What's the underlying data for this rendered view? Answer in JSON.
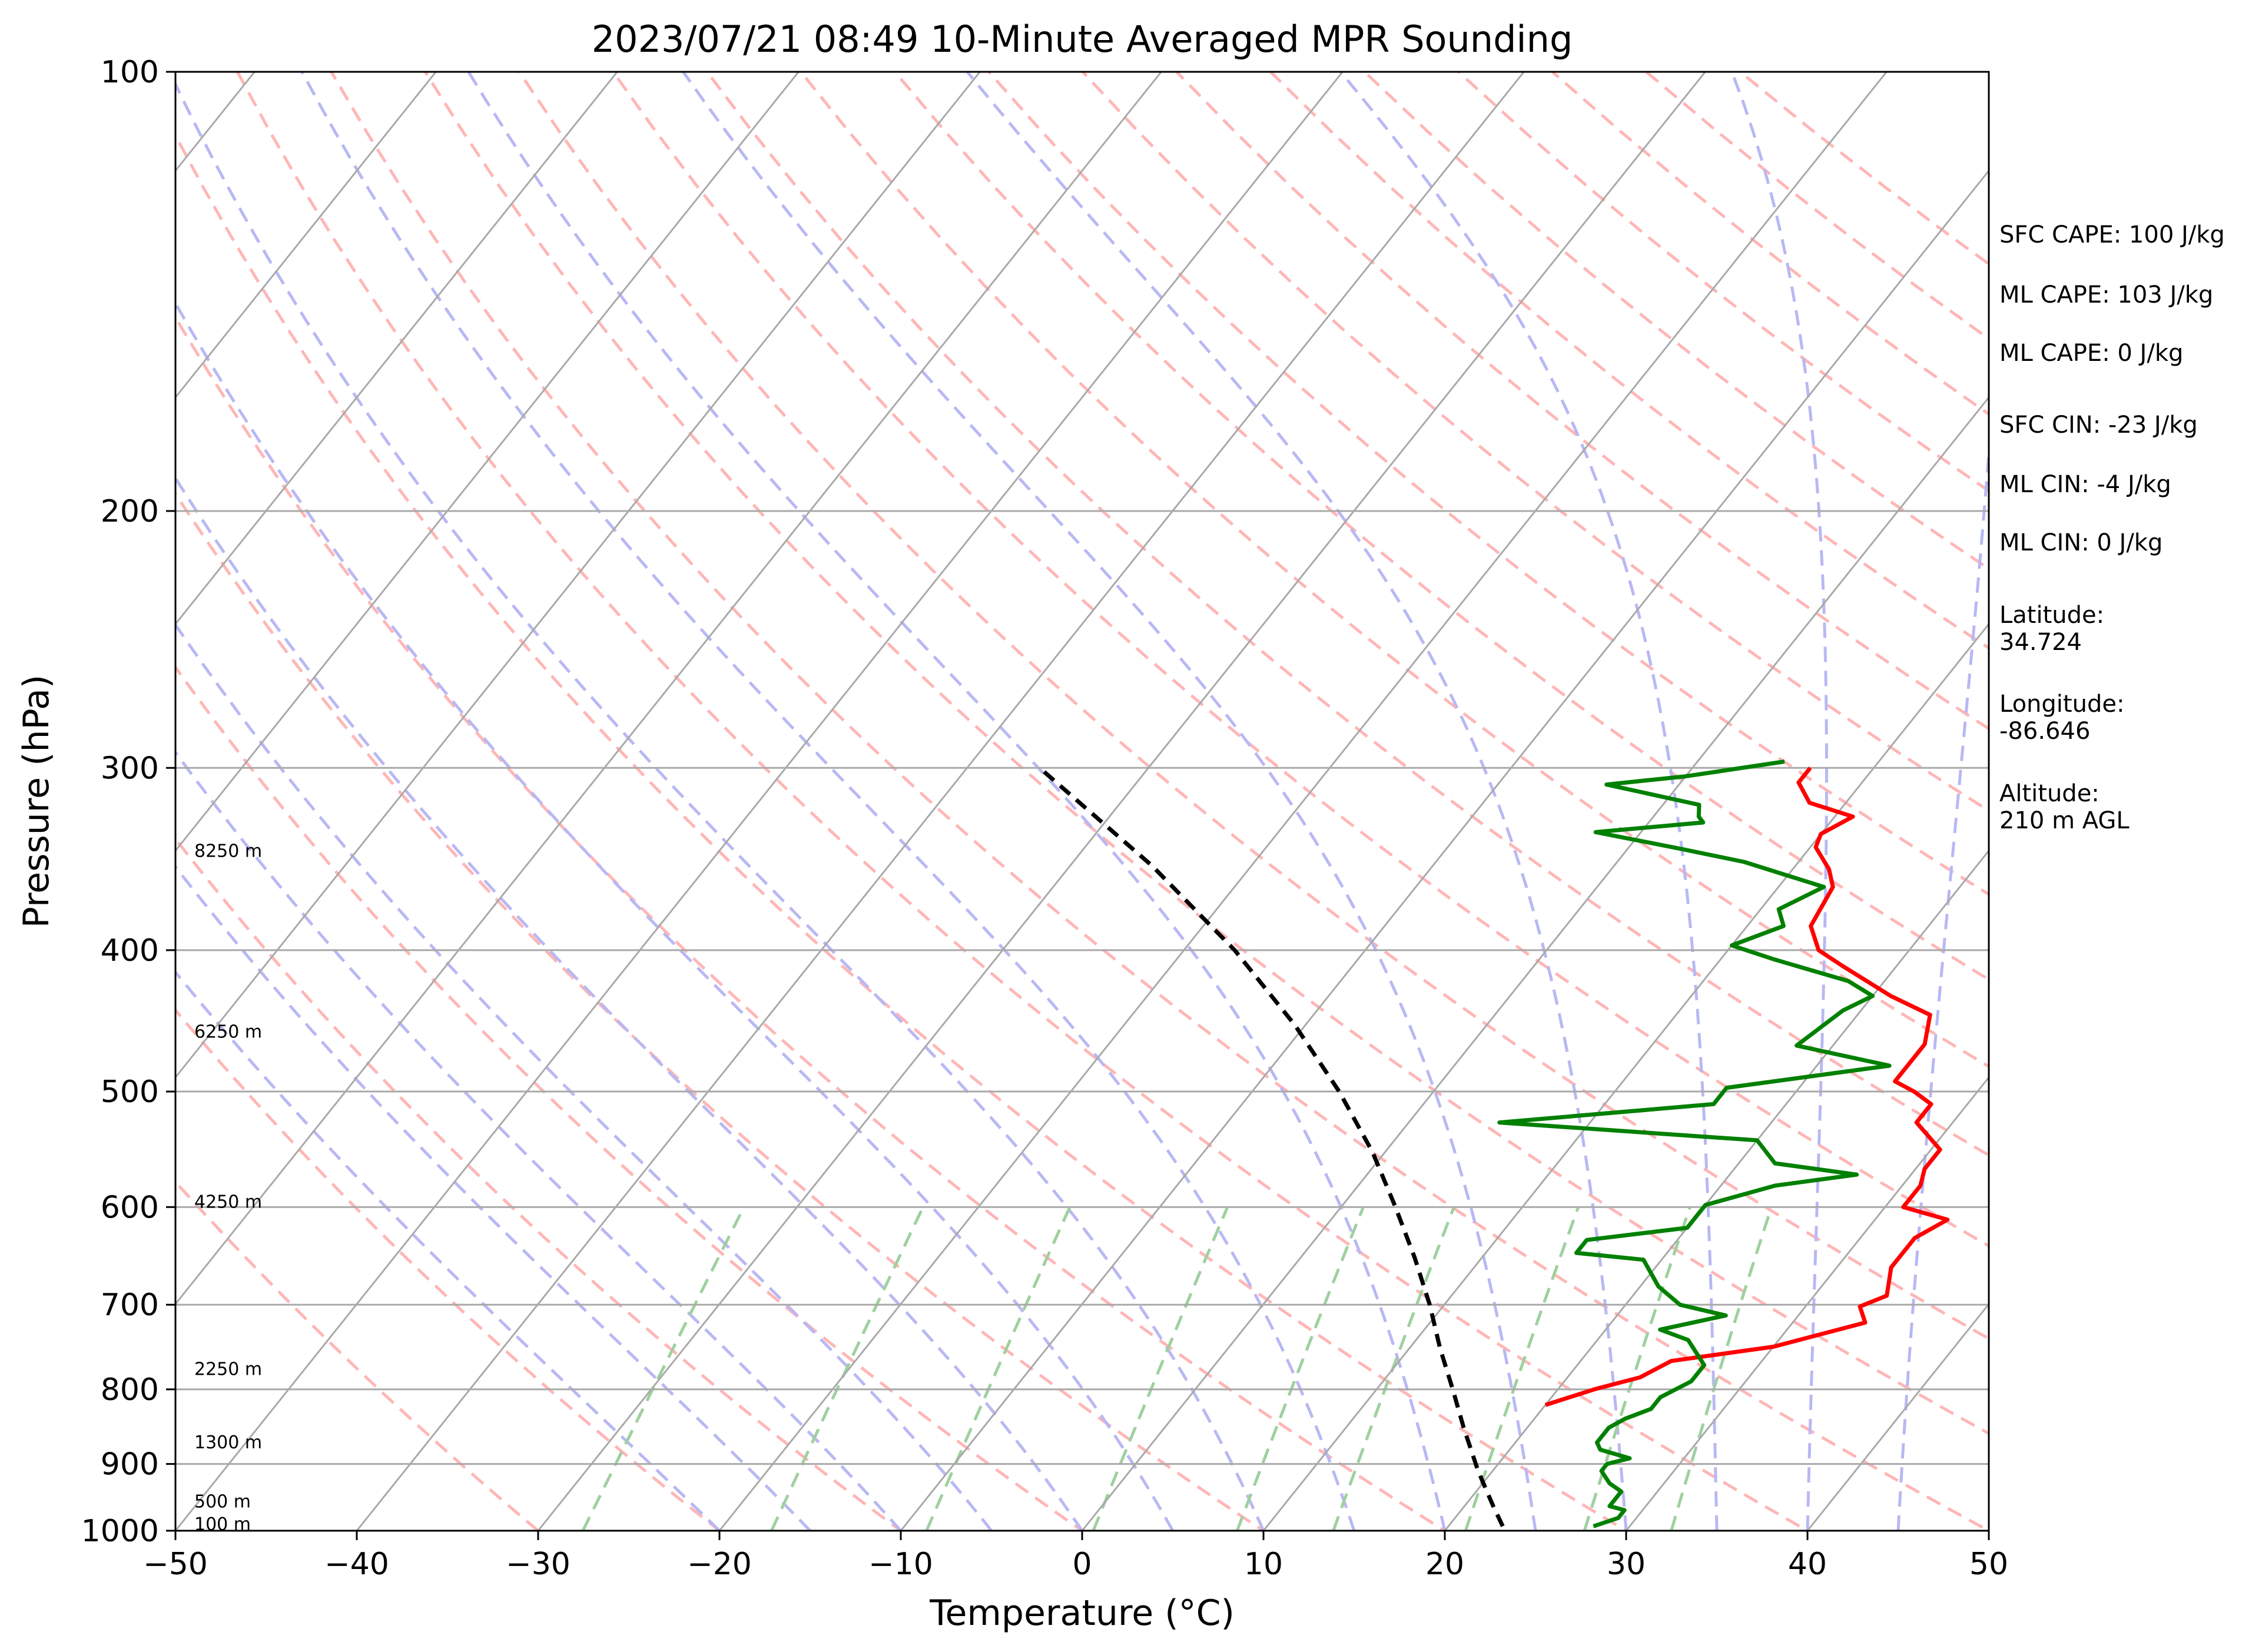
{
  "chart_data": {
    "type": "skew-t",
    "title": "2023/07/21 08:49 10-Minute Averaged MPR Sounding",
    "xlabel": "Temperature (°C)",
    "ylabel": "Pressure (hPa)",
    "xlim": [
      -50,
      50
    ],
    "ylim": [
      1000,
      100
    ],
    "y_scale": "log",
    "grid": true,
    "x_ticks": [
      -50,
      -40,
      -30,
      -20,
      -10,
      0,
      10,
      20,
      30,
      40,
      50
    ],
    "x_tick_labels": [
      "−50",
      "−40",
      "−30",
      "−20",
      "−10",
      "0",
      "10",
      "20",
      "30",
      "40",
      "50"
    ],
    "y_ticks": [
      1000,
      900,
      800,
      700,
      600,
      500,
      400,
      300,
      200,
      100
    ],
    "y_tick_labels": [
      "1000",
      "900",
      "800",
      "700",
      "600",
      "500",
      "400",
      "300",
      "200",
      "100"
    ],
    "height_labels": [
      {
        "p": 990,
        "text": "100 m"
      },
      {
        "p": 955,
        "text": "500 m"
      },
      {
        "p": 870,
        "text": "1300 m"
      },
      {
        "p": 775,
        "text": "2250 m"
      },
      {
        "p": 595,
        "text": "4250 m"
      },
      {
        "p": 455,
        "text": "6250 m"
      },
      {
        "p": 342,
        "text": "8250 m"
      }
    ],
    "series": [
      {
        "role": "temperature",
        "color": "#ff0000",
        "points": [
          [
            300,
            6.5
          ],
          [
            307,
            6.5
          ],
          [
            317,
            8
          ],
          [
            324,
            11
          ],
          [
            333,
            10
          ],
          [
            340,
            10.3
          ],
          [
            352,
            12
          ],
          [
            362,
            13
          ],
          [
            385,
            13.5
          ],
          [
            400,
            15
          ],
          [
            410,
            17
          ],
          [
            430,
            21
          ],
          [
            443,
            24
          ],
          [
            464,
            25
          ],
          [
            473,
            25
          ],
          [
            492,
            25
          ],
          [
            500,
            26.5
          ],
          [
            510,
            28
          ],
          [
            525,
            28
          ],
          [
            548,
            30.5
          ],
          [
            565,
            30.5
          ],
          [
            580,
            31
          ],
          [
            600,
            31
          ],
          [
            612,
            34
          ],
          [
            630,
            33
          ],
          [
            660,
            33
          ],
          [
            690,
            34
          ],
          [
            702,
            33
          ],
          [
            720,
            34
          ],
          [
            748,
            30
          ],
          [
            765,
            25
          ],
          [
            785,
            24
          ],
          [
            800,
            22
          ],
          [
            820,
            20
          ]
        ]
      },
      {
        "role": "dewpoint",
        "color": "#008000",
        "points": [
          [
            297,
            4.8
          ],
          [
            304,
            0
          ],
          [
            308,
            -4
          ],
          [
            318,
            2
          ],
          [
            324,
            2.5
          ],
          [
            327,
            3
          ],
          [
            332,
            -2.5
          ],
          [
            341,
            3
          ],
          [
            348,
            7
          ],
          [
            362,
            12.5
          ],
          [
            375,
            11
          ],
          [
            385,
            12
          ],
          [
            397,
            10
          ],
          [
            406,
            13
          ],
          [
            420,
            18
          ],
          [
            430,
            20
          ],
          [
            440,
            19
          ],
          [
            465,
            18
          ],
          [
            480,
            24
          ],
          [
            497,
            16
          ],
          [
            510,
            16
          ],
          [
            525,
            5
          ],
          [
            540,
            20
          ],
          [
            560,
            22
          ],
          [
            570,
            27
          ],
          [
            580,
            23
          ],
          [
            598,
            20
          ],
          [
            620,
            20
          ],
          [
            632,
            15
          ],
          [
            645,
            15
          ],
          [
            652,
            19
          ],
          [
            680,
            21
          ],
          [
            700,
            23
          ],
          [
            712,
            26
          ],
          [
            728,
            23
          ],
          [
            740,
            25
          ],
          [
            770,
            27
          ],
          [
            790,
            27
          ],
          [
            810,
            26
          ],
          [
            825,
            26
          ],
          [
            838,
            25
          ],
          [
            850,
            24.5
          ],
          [
            870,
            24.5
          ],
          [
            880,
            25
          ],
          [
            892,
            27
          ],
          [
            900,
            26
          ],
          [
            910,
            26
          ],
          [
            928,
            27
          ],
          [
            940,
            28
          ],
          [
            950,
            28
          ],
          [
            962,
            28
          ],
          [
            968,
            29
          ],
          [
            980,
            29
          ],
          [
            993,
            28
          ]
        ]
      },
      {
        "role": "parcel",
        "color": "#000000",
        "dashed": true,
        "points": [
          [
            993,
            23
          ],
          [
            960,
            21.5
          ],
          [
            910,
            19.2
          ],
          [
            850,
            16.5
          ],
          [
            800,
            14.2
          ],
          [
            750,
            11.7
          ],
          [
            700,
            9.2
          ],
          [
            650,
            6.3
          ],
          [
            600,
            3.0
          ],
          [
            550,
            -0.7
          ],
          [
            500,
            -5.2
          ],
          [
            450,
            -10.6
          ],
          [
            400,
            -17.2
          ],
          [
            350,
            -25.5
          ],
          [
            300,
            -36
          ]
        ]
      }
    ],
    "colors": {
      "isotherm": "#a9a9a9",
      "dry_adiabat": "#ffb6b6",
      "moist_adiabat": "#b8b8f4",
      "mixing_ratio": "#9fd09f",
      "isobar": "#a9a9a9"
    }
  },
  "info": {
    "sfc_cape": "SFC CAPE: 100 J/kg",
    "ml_cape_1": "ML CAPE: 103 J/kg",
    "ml_cape_2": "ML CAPE: 0 J/kg",
    "sfc_cin": "SFC CIN: -23 J/kg",
    "ml_cin_1": "ML CIN: -4 J/kg",
    "ml_cin_2": "ML CIN: 0 J/kg",
    "latitude_label": "Latitude:",
    "latitude_value": "34.724",
    "longitude_label": "Longitude:",
    "longitude_value": "-86.646",
    "altitude_label": "Altitude:",
    "altitude_value": "210 m AGL"
  }
}
